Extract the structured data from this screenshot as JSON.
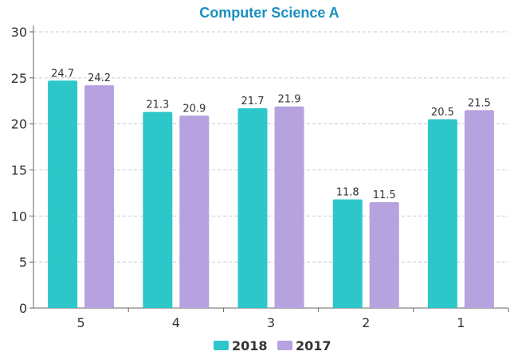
{
  "colors": {
    "title": "#1a8fc0",
    "series_2018": "#2ec7c9",
    "series_2017": "#b6a2de",
    "axis": "#666666",
    "grid": "#c8c8e0"
  },
  "chart_data": {
    "type": "bar",
    "title": "Computer Science A",
    "xlabel": "",
    "ylabel": "",
    "categories": [
      "5",
      "4",
      "3",
      "2",
      "1"
    ],
    "series": [
      {
        "name": "2018",
        "values": [
          24.7,
          21.3,
          21.7,
          11.8,
          20.5
        ]
      },
      {
        "name": "2017",
        "values": [
          24.2,
          20.9,
          21.9,
          11.5,
          21.5
        ]
      }
    ],
    "ylim": [
      0,
      30
    ],
    "yticks": [
      "0",
      "5",
      "10",
      "15",
      "20",
      "25",
      "30"
    ],
    "grid": true,
    "legend_position": "bottom"
  }
}
